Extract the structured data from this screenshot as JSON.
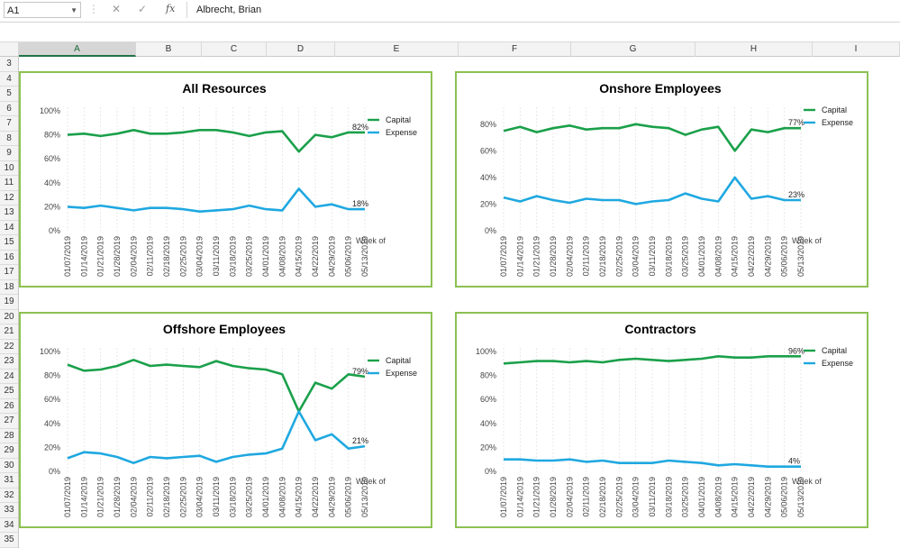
{
  "formula_bar": {
    "name_box": "A1",
    "fx": "fx",
    "cancel": "✕",
    "enter": "✓",
    "value": "Albrecht, Brian"
  },
  "columns": [
    "A",
    "B",
    "C",
    "D",
    "E",
    "F",
    "G",
    "H",
    "I"
  ],
  "rows": [
    "3",
    "4",
    "5",
    "6",
    "7",
    "8",
    "9",
    "10",
    "11",
    "12",
    "13",
    "14",
    "15",
    "16",
    "17",
    "18",
    "19",
    "20",
    "21",
    "22",
    "23",
    "24",
    "25",
    "26",
    "27",
    "28",
    "29",
    "30",
    "31",
    "32",
    "33",
    "34",
    "35"
  ],
  "colors": {
    "capital": "#1aa04a",
    "expense": "#1fa8e0",
    "chart_border": "#8cc152"
  },
  "chart_data": [
    {
      "type": "line",
      "title": "All Resources",
      "xlabel": "Week of",
      "categories": [
        "01/07/2019",
        "01/14/2019",
        "01/21/2019",
        "01/28/2019",
        "02/04/2019",
        "02/11/2019",
        "02/18/2019",
        "02/25/2019",
        "03/04/2019",
        "03/11/2019",
        "03/18/2019",
        "03/25/2019",
        "04/01/2019",
        "04/08/2019",
        "04/15/2019",
        "04/22/2019",
        "04/29/2019",
        "05/06/2019",
        "05/13/2019"
      ],
      "y_ticks": [
        "0%",
        "20%",
        "40%",
        "60%",
        "80%",
        "100%"
      ],
      "ylim": [
        0,
        100
      ],
      "series": [
        {
          "name": "Capital",
          "values": [
            80,
            81,
            79,
            81,
            84,
            81,
            81,
            82,
            84,
            84,
            82,
            79,
            82,
            83,
            66,
            80,
            78,
            82,
            82
          ],
          "end_label": "82%"
        },
        {
          "name": "Expense",
          "values": [
            20,
            19,
            21,
            19,
            17,
            19,
            19,
            18,
            16,
            17,
            18,
            21,
            18,
            17,
            35,
            20,
            22,
            18,
            18
          ],
          "end_label": "18%"
        }
      ],
      "legend": "right"
    },
    {
      "type": "line",
      "title": "Onshore Employees",
      "xlabel": "Week of",
      "categories": [
        "01/07/2019",
        "01/14/2019",
        "01/21/2019",
        "01/28/2019",
        "02/04/2019",
        "02/11/2019",
        "02/18/2019",
        "02/25/2019",
        "03/04/2019",
        "03/11/2019",
        "03/18/2019",
        "03/25/2019",
        "04/01/2019",
        "04/08/2019",
        "04/15/2019",
        "04/22/2019",
        "04/29/2019",
        "05/06/2019",
        "05/13/2019"
      ],
      "y_ticks": [
        "0%",
        "20%",
        "40%",
        "60%",
        "80%"
      ],
      "ylim": [
        0,
        90
      ],
      "series": [
        {
          "name": "Capital",
          "values": [
            75,
            78,
            74,
            77,
            79,
            76,
            77,
            77,
            80,
            78,
            77,
            72,
            76,
            78,
            60,
            76,
            74,
            77,
            77
          ],
          "end_label": "77%"
        },
        {
          "name": "Expense",
          "values": [
            25,
            22,
            26,
            23,
            21,
            24,
            23,
            23,
            20,
            22,
            23,
            28,
            24,
            22,
            40,
            24,
            26,
            23,
            23
          ],
          "end_label": "23%"
        }
      ],
      "legend": "right"
    },
    {
      "type": "line",
      "title": "Offshore Employees",
      "xlabel": "Week of",
      "categories": [
        "01/07/2019",
        "01/14/2019",
        "01/21/2019",
        "01/28/2019",
        "02/04/2019",
        "02/11/2019",
        "02/18/2019",
        "02/25/2019",
        "03/04/2019",
        "03/11/2019",
        "03/18/2019",
        "03/25/2019",
        "04/01/2019",
        "04/08/2019",
        "04/15/2019",
        "04/22/2019",
        "04/29/2019",
        "05/06/2019",
        "05/13/2019"
      ],
      "y_ticks": [
        "0%",
        "20%",
        "40%",
        "60%",
        "80%",
        "100%"
      ],
      "ylim": [
        0,
        100
      ],
      "series": [
        {
          "name": "Capital",
          "values": [
            89,
            84,
            85,
            88,
            93,
            88,
            89,
            88,
            87,
            92,
            88,
            86,
            85,
            81,
            50,
            74,
            69,
            81,
            79
          ],
          "end_label": "79%"
        },
        {
          "name": "Expense",
          "values": [
            11,
            16,
            15,
            12,
            7,
            12,
            11,
            12,
            13,
            8,
            12,
            14,
            15,
            19,
            50,
            26,
            31,
            19,
            21
          ],
          "end_label": "21%"
        }
      ],
      "legend": "right"
    },
    {
      "type": "line",
      "title": "Contractors",
      "xlabel": "Week of",
      "categories": [
        "01/07/2019",
        "01/14/2019",
        "01/21/2019",
        "01/28/2019",
        "02/04/2019",
        "02/11/2019",
        "02/18/2019",
        "02/25/2019",
        "03/04/2019",
        "03/11/2019",
        "03/18/2019",
        "03/25/2019",
        "04/01/2019",
        "04/08/2019",
        "04/15/2019",
        "04/22/2019",
        "04/29/2019",
        "05/06/2019",
        "05/13/2019"
      ],
      "y_ticks": [
        "0%",
        "20%",
        "40%",
        "60%",
        "80%",
        "100%"
      ],
      "ylim": [
        0,
        100
      ],
      "series": [
        {
          "name": "Capital",
          "values": [
            90,
            91,
            92,
            92,
            91,
            92,
            91,
            93,
            94,
            93,
            92,
            93,
            94,
            96,
            95,
            95,
            96,
            96,
            96
          ],
          "end_label": "96%"
        },
        {
          "name": "Expense",
          "values": [
            10,
            10,
            9,
            9,
            10,
            8,
            9,
            7,
            7,
            7,
            9,
            8,
            7,
            5,
            6,
            5,
            4,
            4,
            4
          ],
          "end_label": "4%"
        }
      ],
      "legend": "right"
    }
  ]
}
